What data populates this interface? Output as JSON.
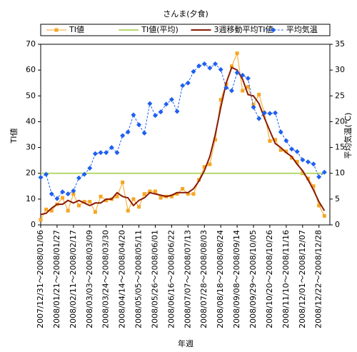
{
  "chart_data": {
    "type": "line",
    "title": "さんま(夕食)",
    "xlabel": "年週",
    "ylabel": "TI値",
    "y2label": "平均気温(℃)",
    "categories": [
      "2007/12/31～2008/01/06",
      null,
      null,
      "2008/01/21～2008/01/27",
      null,
      null,
      "2008/02/11～2008/02/17",
      null,
      null,
      "2008/03/03～2008/03/09",
      null,
      null,
      "2008/03/24～2008/03/30",
      null,
      null,
      "2008/04/14～2008/04/20",
      null,
      null,
      "2008/05/05～2008/05/11",
      null,
      null,
      "2008/05/26～2008/06/01",
      null,
      null,
      "2008/06/16～2008/06/22",
      null,
      null,
      "2008/07/07～2008/07/13",
      null,
      null,
      "2008/07/28～2008/08/03",
      null,
      null,
      "2008/08/18～2008/08/24",
      null,
      null,
      "2008/09/08～2008/09/14",
      null,
      null,
      "2008/09/29～2008/10/05",
      null,
      null,
      "2008/10/20～2008/10/26",
      null,
      null,
      "2008/11/10～2008/11/16",
      null,
      null,
      "2008/12/01～2008/12/07",
      null,
      null,
      "2008/12/22～2008/12/28",
      null
    ],
    "series": [
      {
        "name": "TI値",
        "color": "#f5a623",
        "marker": "square",
        "values": [
          2,
          6,
          5.5,
          8,
          10.5,
          5.5,
          12,
          7.5,
          9,
          9,
          5,
          11,
          9.5,
          10,
          11,
          16.5,
          5.5,
          10,
          7,
          12,
          13,
          13,
          10.5,
          11,
          11,
          12,
          14,
          12,
          12,
          17.5,
          22.5,
          23.5,
          33,
          48.5,
          54.5,
          61.5,
          66.5,
          52,
          53.5,
          46.5,
          50.5,
          43.5,
          32.5,
          33,
          29,
          28.5,
          26,
          24.5,
          20,
          18,
          15,
          7.5,
          3.5
        ]
      },
      {
        "name": "TI値(平均)",
        "color": "#b5d96a",
        "values": [
          20,
          20,
          20,
          20,
          20,
          20,
          20,
          20,
          20,
          20,
          20,
          20,
          20,
          20,
          20,
          20,
          20,
          20,
          20,
          20,
          20,
          20,
          20,
          20,
          20,
          20,
          20,
          20,
          20,
          20,
          20,
          20,
          20,
          20,
          20,
          20,
          20,
          20,
          20,
          20,
          20,
          20,
          20,
          20,
          20,
          20,
          20,
          20,
          20,
          20,
          20,
          20,
          20
        ]
      },
      {
        "name": "3週移動平均TI値",
        "color": "#8b1a00",
        "values": [
          4,
          4.5,
          6.5,
          8,
          8,
          9.5,
          8.5,
          9.5,
          8.5,
          7.5,
          8.5,
          8.5,
          10,
          10,
          12.5,
          11,
          10.5,
          7.5,
          9.5,
          10.5,
          12.5,
          12,
          11.5,
          11,
          11.5,
          12.5,
          12.5,
          12.5,
          14,
          17,
          21,
          26.5,
          35,
          45.5,
          55,
          61,
          60,
          56.5,
          50.5,
          50,
          47,
          41.5,
          36.5,
          31.5,
          30,
          28,
          26.5,
          23.5,
          21,
          17.5,
          13.5,
          9,
          5.5
        ]
      },
      {
        "name": "平均気温",
        "color": "#1e5ff0",
        "marker": "diamond",
        "dashed": true,
        "axis": "y2",
        "values": [
          9.2,
          9.8,
          6,
          5.1,
          6.4,
          6,
          6.6,
          9.1,
          9.8,
          11,
          13.8,
          14,
          14,
          15,
          14,
          17.3,
          18,
          21.3,
          19.4,
          17.8,
          23.5,
          21.2,
          21.9,
          23.4,
          24.3,
          22,
          27,
          27.5,
          29.7,
          30.8,
          31.2,
          30.4,
          31.2,
          30.1,
          26.6,
          26,
          29.5,
          29,
          28.4,
          22.8,
          20.6,
          21.7,
          21.6,
          21.7,
          18,
          16.3,
          14.7,
          14.2,
          12.6,
          12.2,
          11.8,
          9.3,
          10.2
        ]
      }
    ],
    "ylim": [
      0,
      70
    ],
    "yticks": [
      0,
      10,
      20,
      30,
      40,
      50,
      60,
      70
    ],
    "y2lim": [
      0,
      35
    ],
    "y2ticks": [
      0,
      5,
      10,
      15,
      20,
      25,
      30,
      35
    ],
    "grid": false,
    "legend": "top"
  }
}
